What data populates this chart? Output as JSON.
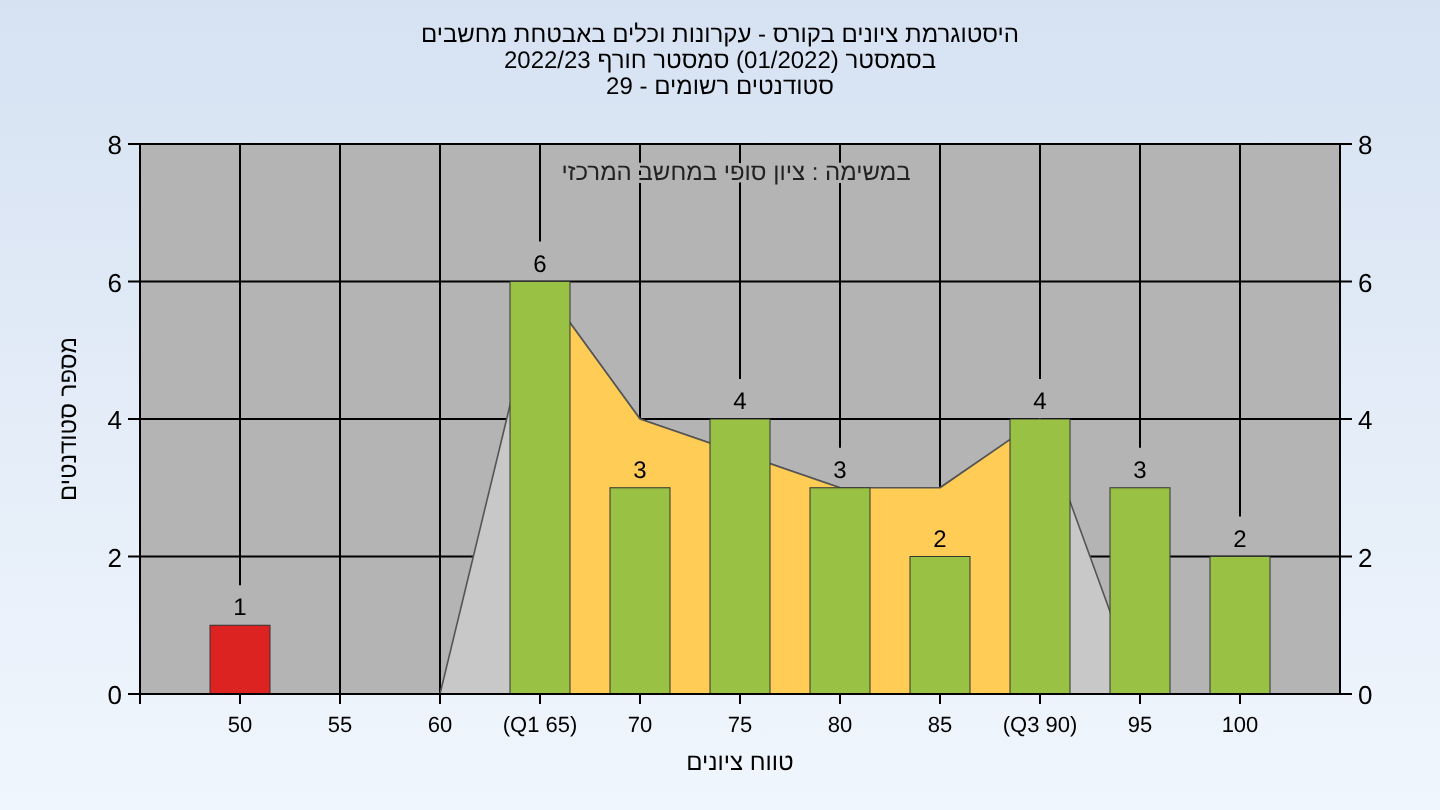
{
  "chart_data": {
    "type": "bar",
    "title": "היסטוגרמת ציונים בקורס - עקרונות וכלים באבטחת מחשבים",
    "subtitle": "בסמסטר  (01/2022)  סמסטר חורף 2022/23\nסטודנטים רשומים - 29",
    "xlabel": "טווח ציונים",
    "ylabel": "מספר סטודנטים",
    "annotations": [
      "במשימה : ציון סופי במחשב המרכזי"
    ],
    "categories": [
      "50",
      "55",
      "60",
      "(Q1 65)",
      "70",
      "75",
      "80",
      "85",
      "(Q3 90)",
      "95",
      "100"
    ],
    "series": [
      {
        "type": "area",
        "color": "#c8c8c8",
        "values": [
          null,
          null,
          0,
          6,
          4,
          null,
          3,
          3,
          4,
          0,
          null
        ]
      },
      {
        "type": "area",
        "color": "#ffcc55",
        "values": [
          null,
          null,
          null,
          6,
          4,
          null,
          3,
          3,
          4,
          null,
          null
        ]
      },
      {
        "colors": [
          "#dd2222",
          "#99c144",
          "#99c144",
          "#99c144",
          "#99c144",
          "#99c144",
          "#99c144",
          "#99c144",
          "#99c144",
          "#99c144",
          "#99c144"
        ],
        "values": [
          1,
          0,
          0,
          6,
          3,
          4,
          3,
          2,
          4,
          3,
          2
        ],
        "value_labels": [
          "1",
          null,
          null,
          "6",
          "3",
          "4",
          "3",
          "2",
          "4",
          "3",
          "2"
        ]
      }
    ],
    "ylim": [
      0,
      8
    ],
    "yticks": [
      0,
      2,
      4,
      6,
      8
    ],
    "y2lim": [
      0,
      8
    ],
    "y2ticks": [
      0,
      2,
      4,
      6,
      8
    ],
    "grid": true
  }
}
